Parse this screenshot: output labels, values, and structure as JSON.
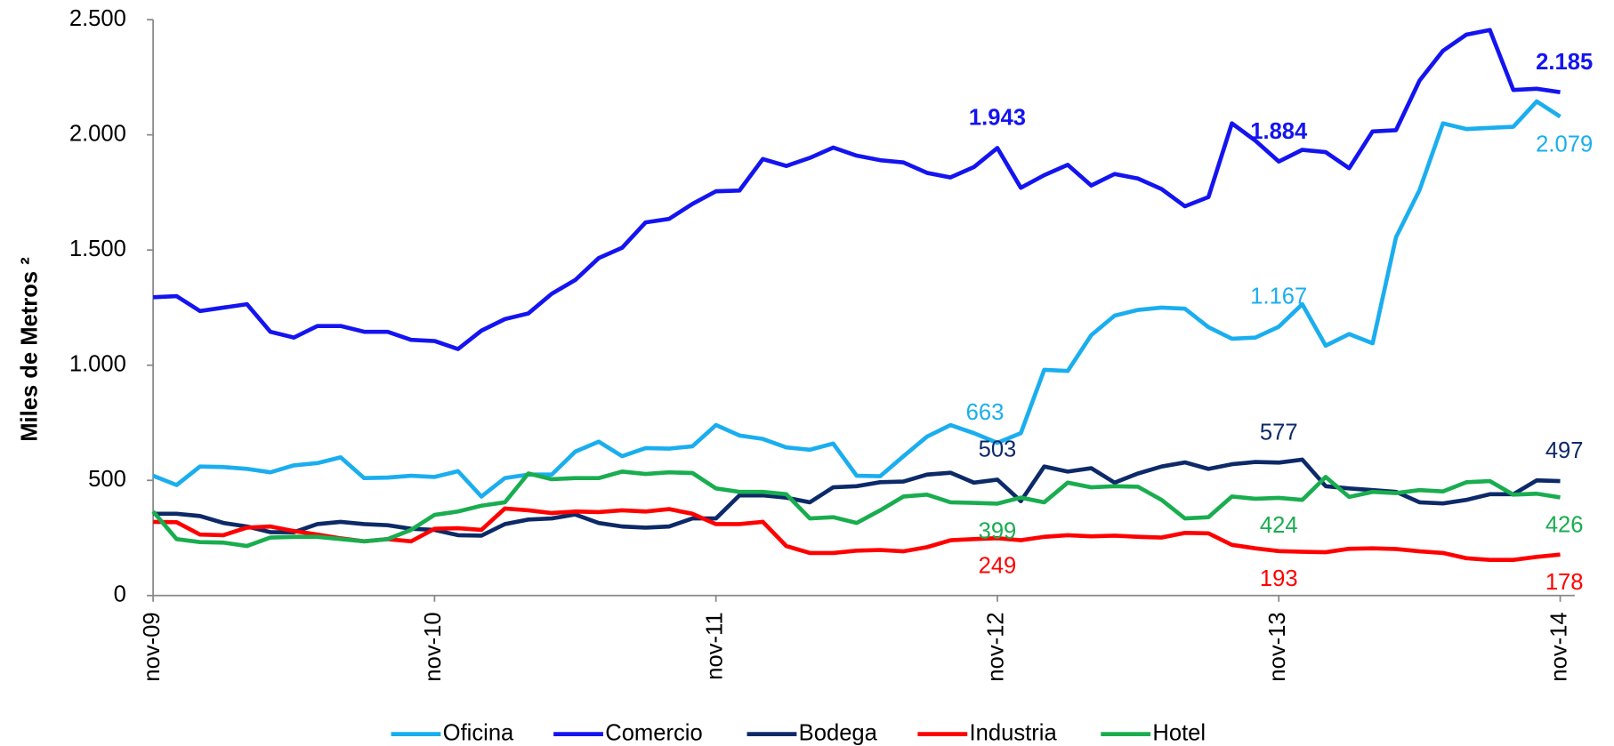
{
  "chart_data": {
    "type": "line",
    "y_label": "Miles de Metros ²",
    "categories": [
      "nov-09",
      null,
      null,
      null,
      null,
      null,
      null,
      null,
      null,
      null,
      null,
      null,
      "nov-10",
      null,
      null,
      null,
      null,
      null,
      null,
      null,
      null,
      null,
      null,
      null,
      "nov-11",
      null,
      null,
      null,
      null,
      null,
      null,
      null,
      null,
      null,
      null,
      null,
      "nov-12",
      null,
      null,
      null,
      null,
      null,
      null,
      null,
      null,
      null,
      null,
      null,
      "nov-13",
      null,
      null,
      null,
      null,
      null,
      null,
      null,
      null,
      null,
      null,
      null,
      "nov-14"
    ],
    "ylim": [
      0,
      2500
    ],
    "yticks": [
      0,
      500,
      {
        "value": 1000,
        "label": "1.000"
      },
      {
        "value": 1500,
        "label": "1.500"
      },
      {
        "value": 2000,
        "label": "2.000"
      },
      {
        "value": 2500,
        "label": "2.500"
      }
    ],
    "grid": false,
    "legend": "bottom",
    "series": [
      {
        "name": "Oficina",
        "color": "#1aaeef",
        "values": [
          520,
          480,
          560,
          558,
          550,
          535,
          565,
          575,
          600,
          510,
          512,
          520,
          515,
          540,
          430,
          510,
          525,
          525,
          625,
          668,
          605,
          640,
          638,
          648,
          740,
          695,
          680,
          643,
          633,
          660,
          520,
          518,
          605,
          690,
          740,
          705,
          663,
          705,
          980,
          975,
          1130,
          1215,
          1240,
          1250,
          1245,
          1165,
          1115,
          1120,
          1167,
          1265,
          1085,
          1135,
          1095,
          1555,
          1760,
          2050,
          2025,
          2030,
          2035,
          2145,
          2079
        ],
        "value_labels": [
          null,
          null,
          null,
          null,
          null,
          null,
          null,
          null,
          null,
          null,
          null,
          null,
          null,
          null,
          null,
          null,
          null,
          null,
          null,
          null,
          null,
          null,
          null,
          null,
          null,
          null,
          null,
          null,
          null,
          null,
          null,
          null,
          null,
          null,
          null,
          null,
          "663",
          null,
          null,
          null,
          null,
          null,
          null,
          null,
          null,
          null,
          null,
          null,
          "1.167",
          null,
          null,
          null,
          null,
          null,
          null,
          null,
          null,
          null,
          null,
          null,
          "2.079"
        ]
      },
      {
        "name": "Comercio",
        "color": "#1414f0",
        "bold_labels": true,
        "values": [
          1295,
          1300,
          1235,
          1250,
          1265,
          1145,
          1120,
          1170,
          1170,
          1145,
          1145,
          1110,
          1105,
          1070,
          1150,
          1200,
          1225,
          1310,
          1370,
          1465,
          1510,
          1620,
          1635,
          1700,
          1755,
          1758,
          1895,
          1865,
          1900,
          1945,
          1910,
          1890,
          1880,
          1835,
          1815,
          1860,
          1943,
          1770,
          1825,
          1870,
          1780,
          1830,
          1810,
          1765,
          1690,
          1730,
          2050,
          1975,
          1884,
          1935,
          1925,
          1855,
          2015,
          2020,
          2235,
          2365,
          2435,
          2455,
          2195,
          2200,
          2185
        ],
        "value_labels": [
          null,
          null,
          null,
          null,
          null,
          null,
          null,
          null,
          null,
          null,
          null,
          null,
          null,
          null,
          null,
          null,
          null,
          null,
          null,
          null,
          null,
          null,
          null,
          null,
          null,
          null,
          null,
          null,
          null,
          null,
          null,
          null,
          null,
          null,
          null,
          null,
          "1.943",
          null,
          null,
          null,
          null,
          null,
          null,
          null,
          null,
          null,
          null,
          null,
          "1.884",
          null,
          null,
          null,
          null,
          null,
          null,
          null,
          null,
          null,
          null,
          null,
          "2.185"
        ]
      },
      {
        "name": "Bodega",
        "color": "#0d2a68",
        "values": [
          355,
          355,
          345,
          315,
          300,
          275,
          275,
          310,
          320,
          310,
          305,
          290,
          285,
          262,
          260,
          310,
          330,
          335,
          352,
          315,
          300,
          295,
          300,
          335,
          335,
          435,
          435,
          425,
          405,
          470,
          475,
          492,
          495,
          525,
          533,
          490,
          503,
          410,
          560,
          538,
          553,
          490,
          530,
          560,
          578,
          550,
          570,
          580,
          577,
          590,
          475,
          465,
          458,
          450,
          405,
          400,
          415,
          440,
          440,
          500,
          497
        ],
        "value_labels": [
          null,
          null,
          null,
          null,
          null,
          null,
          null,
          null,
          null,
          null,
          null,
          null,
          null,
          null,
          null,
          null,
          null,
          null,
          null,
          null,
          null,
          null,
          null,
          null,
          null,
          null,
          null,
          null,
          null,
          null,
          null,
          null,
          null,
          null,
          null,
          null,
          "503",
          null,
          null,
          null,
          null,
          null,
          null,
          null,
          null,
          null,
          null,
          null,
          "577",
          null,
          null,
          null,
          null,
          null,
          null,
          null,
          null,
          null,
          null,
          null,
          "497"
        ]
      },
      {
        "name": "Industria",
        "color": "#ff0000",
        "values": [
          320,
          318,
          265,
          262,
          295,
          300,
          280,
          265,
          248,
          235,
          245,
          235,
          290,
          292,
          285,
          378,
          370,
          358,
          365,
          362,
          370,
          365,
          375,
          355,
          310,
          310,
          320,
          215,
          185,
          185,
          195,
          198,
          192,
          210,
          240,
          245,
          249,
          240,
          255,
          262,
          257,
          260,
          255,
          252,
          272,
          270,
          220,
          205,
          193,
          190,
          188,
          203,
          205,
          202,
          192,
          185,
          162,
          155,
          155,
          168,
          178
        ],
        "value_labels": [
          null,
          null,
          null,
          null,
          null,
          null,
          null,
          null,
          null,
          null,
          null,
          null,
          null,
          null,
          null,
          null,
          null,
          null,
          null,
          null,
          null,
          null,
          null,
          null,
          null,
          null,
          null,
          null,
          null,
          null,
          null,
          null,
          null,
          null,
          null,
          null,
          "249",
          null,
          null,
          null,
          null,
          null,
          null,
          null,
          null,
          null,
          null,
          null,
          "193",
          null,
          null,
          null,
          null,
          null,
          null,
          null,
          null,
          null,
          null,
          null,
          "178"
        ]
      },
      {
        "name": "Hotel",
        "color": "#19ad4f",
        "values": [
          365,
          245,
          232,
          230,
          215,
          252,
          255,
          255,
          245,
          235,
          245,
          285,
          350,
          365,
          390,
          405,
          530,
          505,
          510,
          510,
          538,
          528,
          535,
          532,
          465,
          450,
          450,
          440,
          335,
          340,
          315,
          370,
          430,
          438,
          405,
          402,
          399,
          425,
          405,
          490,
          470,
          475,
          472,
          415,
          335,
          340,
          430,
          420,
          424,
          415,
          515,
          428,
          450,
          445,
          458,
          452,
          492,
          497,
          438,
          442,
          426
        ],
        "value_labels": [
          null,
          null,
          null,
          null,
          null,
          null,
          null,
          null,
          null,
          null,
          null,
          null,
          null,
          null,
          null,
          null,
          null,
          null,
          null,
          null,
          null,
          null,
          null,
          null,
          null,
          null,
          null,
          null,
          null,
          null,
          null,
          null,
          null,
          null,
          null,
          null,
          "399",
          null,
          null,
          null,
          null,
          null,
          null,
          null,
          null,
          null,
          null,
          null,
          "424",
          null,
          null,
          null,
          null,
          null,
          null,
          null,
          null,
          null,
          null,
          null,
          "426"
        ]
      }
    ]
  }
}
